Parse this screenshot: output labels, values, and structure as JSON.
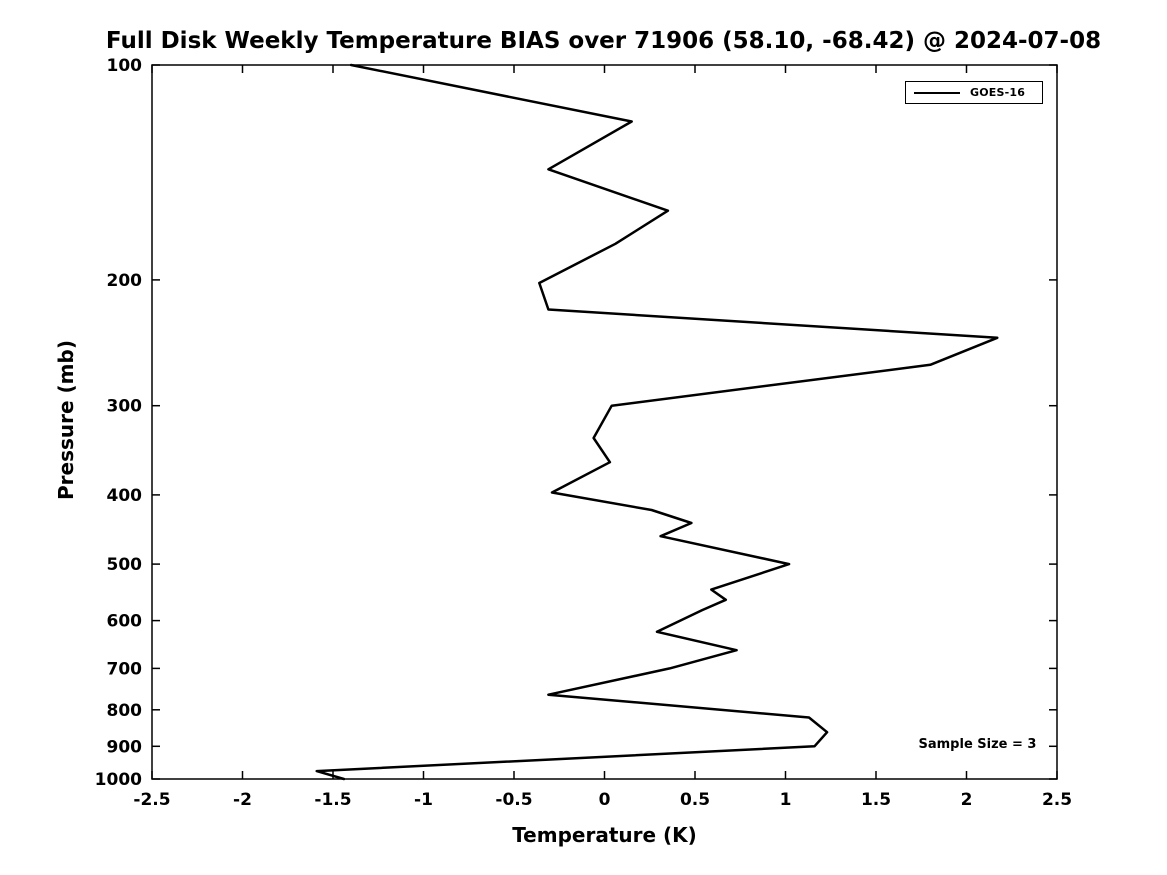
{
  "chart_data": {
    "type": "line",
    "title": "Full Disk Weekly Temperature BIAS over 71906 (58.10, -68.42) @ 2024-07-08",
    "xlabel": "Temperature (K)",
    "ylabel": "Pressure (mb)",
    "xlim": [
      -2.5,
      2.5
    ],
    "ylim": [
      100,
      1000
    ],
    "yscale": "log",
    "y_inverted": true,
    "grid": false,
    "xticks": [
      -2.5,
      -2,
      -1.5,
      -1,
      -0.5,
      0,
      0.5,
      1,
      1.5,
      2,
      2.5
    ],
    "yticks": [
      100,
      200,
      300,
      400,
      500,
      600,
      700,
      800,
      900,
      1000
    ],
    "legend": {
      "position": "top-right",
      "entries": [
        {
          "label": "GOES-16",
          "color": "#000000"
        }
      ]
    },
    "annotation": "Sample Size = 3",
    "line_color": "#000000",
    "series": [
      {
        "name": "GOES-16",
        "color": "#000000",
        "points": [
          [
            100,
            -1.4
          ],
          [
            120,
            0.15
          ],
          [
            140,
            -0.31
          ],
          [
            160,
            0.35
          ],
          [
            178,
            0.06
          ],
          [
            202,
            -0.36
          ],
          [
            220,
            -0.31
          ],
          [
            241,
            2.17
          ],
          [
            263,
            1.8
          ],
          [
            300,
            0.04
          ],
          [
            333,
            -0.06
          ],
          [
            360,
            0.03
          ],
          [
            397,
            -0.29
          ],
          [
            420,
            0.26
          ],
          [
            438,
            0.48
          ],
          [
            457,
            0.31
          ],
          [
            500,
            1.02
          ],
          [
            543,
            0.59
          ],
          [
            561,
            0.67
          ],
          [
            580,
            0.54
          ],
          [
            622,
            0.29
          ],
          [
            660,
            0.73
          ],
          [
            700,
            0.36
          ],
          [
            762,
            -0.31
          ],
          [
            820,
            1.13
          ],
          [
            860,
            1.23
          ],
          [
            900,
            1.16
          ],
          [
            975,
            -1.59
          ],
          [
            1000,
            -1.44
          ]
        ]
      }
    ]
  }
}
